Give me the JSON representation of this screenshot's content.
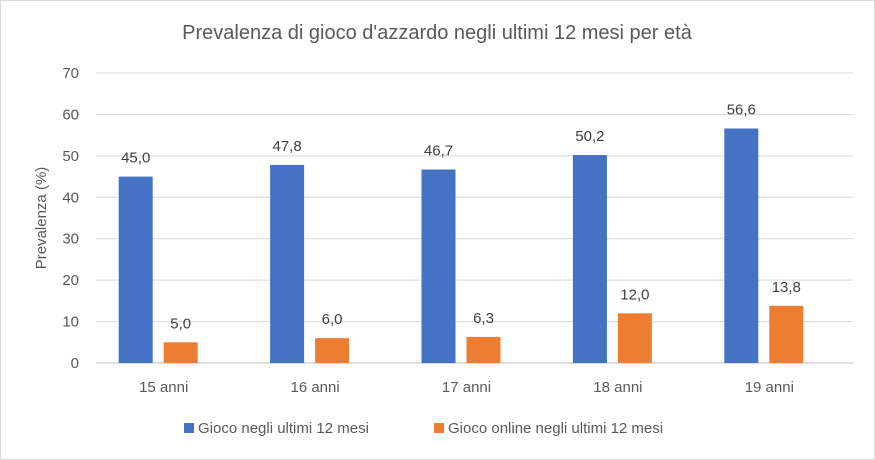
{
  "chart_data": {
    "type": "bar",
    "title": "Prevalenza di gioco d'azzardo negli ultimi 12 mesi per età",
    "xlabel": "",
    "ylabel": "Prevalenza (%)",
    "ylim": [
      0,
      70
    ],
    "yticks": [
      "0",
      "10",
      "20",
      "30",
      "40",
      "50",
      "60",
      "70"
    ],
    "grid": true,
    "legend_position": "bottom",
    "categories": [
      "15 anni",
      "16 anni",
      "17 anni",
      "18 anni",
      "19 anni"
    ],
    "series": [
      {
        "name": "Gioco negli ultimi 12 mesi",
        "color": "#4472c4",
        "values": [
          45.0,
          47.8,
          46.7,
          50.2,
          56.6
        ],
        "labels": [
          "45,0",
          "47,8",
          "46,7",
          "50,2",
          "56,6"
        ]
      },
      {
        "name": "Gioco online negli ultimi 12 mesi",
        "color": "#ed7d31",
        "values": [
          5.0,
          6.0,
          6.3,
          12.0,
          13.8
        ],
        "labels": [
          "5,0",
          "6,0",
          "6,3",
          "12,0",
          "13,8"
        ]
      }
    ]
  }
}
